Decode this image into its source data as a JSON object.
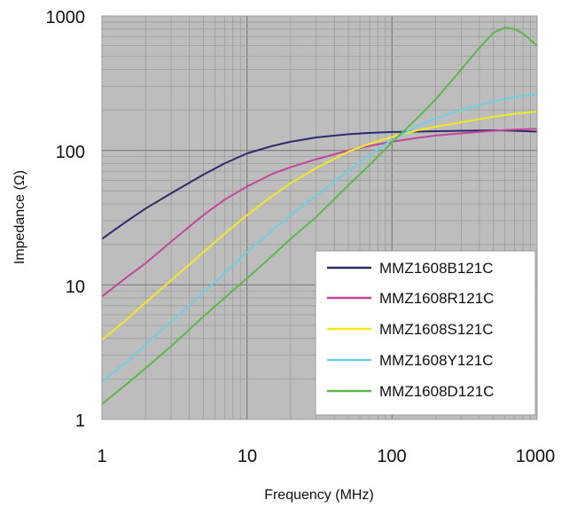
{
  "chart_data": {
    "type": "line",
    "x_scale": "log",
    "y_scale": "log",
    "xlim": [
      1,
      1000
    ],
    "ylim": [
      1,
      1000
    ],
    "xlabel": "Frequency (MHz)",
    "ylabel": "Impedance (Ω)",
    "x_ticks": [
      1,
      10,
      100,
      1000
    ],
    "x_tick_labels": [
      "1",
      "10",
      "100",
      "1000"
    ],
    "y_ticks": [
      1,
      10,
      100,
      1000
    ],
    "y_tick_labels": [
      "1",
      "10",
      "100",
      "1000"
    ],
    "grid": true,
    "legend_position": "bottom-right",
    "series": [
      {
        "name": "MMZ1608B121C",
        "color": "#2e2a6e",
        "x": [
          1,
          1.5,
          2,
          3,
          5,
          7,
          10,
          15,
          20,
          30,
          50,
          70,
          100,
          150,
          200,
          300,
          500,
          700,
          1000
        ],
        "y": [
          22,
          30,
          37,
          48,
          66,
          80,
          95,
          108,
          116,
          125,
          132,
          135,
          137,
          138,
          139,
          140,
          141,
          140,
          138
        ]
      },
      {
        "name": "MMZ1608R121C",
        "color": "#c2479c",
        "x": [
          1,
          1.5,
          2,
          3,
          5,
          7,
          10,
          15,
          20,
          30,
          50,
          70,
          100,
          150,
          200,
          300,
          500,
          700,
          1000
        ],
        "y": [
          8.2,
          11.5,
          14.5,
          21,
          33,
          43,
          54,
          67,
          75,
          86,
          100,
          108,
          116,
          124,
          129,
          134,
          140,
          143,
          145
        ]
      },
      {
        "name": "MMZ1608S121C",
        "color": "#f4e821",
        "x": [
          1,
          1.5,
          2,
          3,
          5,
          7,
          10,
          15,
          20,
          30,
          50,
          70,
          100,
          150,
          200,
          300,
          500,
          700,
          1000
        ],
        "y": [
          3.9,
          5.6,
          7.4,
          10.8,
          17.5,
          24,
          33,
          46,
          57,
          74,
          98,
          112,
          126,
          141,
          150,
          162,
          178,
          187,
          195
        ]
      },
      {
        "name": "MMZ1608Y121C",
        "color": "#6ed0e0",
        "x": [
          1,
          1.5,
          2,
          3,
          5,
          7,
          10,
          15,
          20,
          30,
          50,
          70,
          100,
          150,
          200,
          300,
          500,
          700,
          1000
        ],
        "y": [
          1.9,
          2.7,
          3.6,
          5.3,
          8.8,
          12.2,
          17.5,
          25.5,
          33,
          46,
          70,
          92,
          120,
          152,
          173,
          200,
          232,
          250,
          262
        ]
      },
      {
        "name": "MMZ1608D121C",
        "color": "#5cb84a",
        "x": [
          1,
          1.5,
          2,
          3,
          5,
          7,
          10,
          15,
          20,
          30,
          50,
          70,
          100,
          150,
          200,
          300,
          400,
          500,
          600,
          700,
          800,
          1000
        ],
        "y": [
          1.3,
          1.85,
          2.4,
          3.5,
          5.8,
          8.0,
          11.2,
          16.5,
          22,
          32,
          55,
          78,
          115,
          175,
          240,
          400,
          580,
          750,
          820,
          800,
          740,
          600
        ]
      }
    ]
  }
}
